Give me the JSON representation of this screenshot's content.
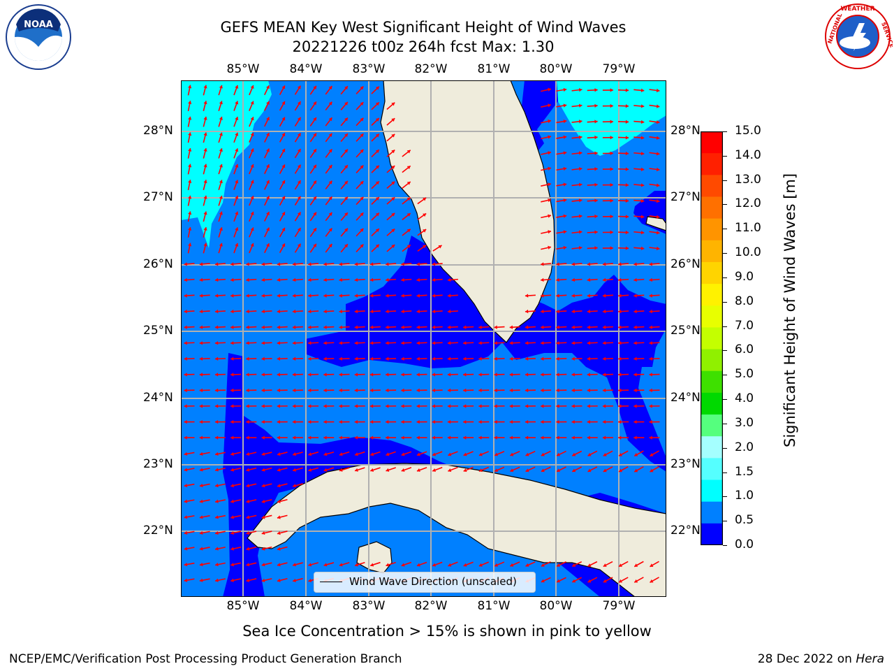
{
  "title": {
    "line1": "GEFS MEAN Key West Significant Height of Wind Waves",
    "line2": "20221226 t00z 264h fcst   Max: 1.30"
  },
  "axes": {
    "lon_labels": [
      "85°W",
      "84°W",
      "83°W",
      "82°W",
      "81°W",
      "80°W",
      "79°W"
    ],
    "lat_labels": [
      "28°N",
      "27°N",
      "26°N",
      "25°N",
      "24°N",
      "23°N",
      "22°N"
    ]
  },
  "colorbar": {
    "label": "Significant Height of Wind Waves [m]",
    "ticks": [
      "15.0",
      "14.0",
      "13.0",
      "12.0",
      "11.0",
      "10.0",
      "9.0",
      "8.0",
      "7.0",
      "6.0",
      "5.0",
      "4.0",
      "3.0",
      "2.0",
      "1.5",
      "1.0",
      "0.5",
      "0.0"
    ],
    "colors": [
      "#ff0000",
      "#ff2000",
      "#ff4a00",
      "#ff7000",
      "#ff9400",
      "#ffb400",
      "#ffd400",
      "#fff200",
      "#e8ff00",
      "#c4ff00",
      "#90f000",
      "#3ee000",
      "#00d900",
      "#55ff7e",
      "#a5ffff",
      "#55ffff",
      "#00ffff",
      "#0080ff",
      "#0000ff"
    ]
  },
  "legend": {
    "label": "Wind Wave Direction (unscaled)"
  },
  "note": "Sea Ice Concentration > 15% is shown in pink to yellow",
  "footer": {
    "left": "NCEP/EMC/Verification Post Processing Product Generation Branch",
    "right_date": "28 Dec 2022 on ",
    "right_host": "Hera"
  },
  "logos": {
    "noaa": "NOAA",
    "nws": "NATIONAL WEATHER SERVICE"
  },
  "palette": {
    "wave_0_0_5": "#0000ff",
    "wave_0_5_1_0": "#0080ff",
    "wave_1_0_1_5": "#00ffff",
    "land": "#efecdc",
    "arrows": "#ff0000"
  },
  "map_data": {
    "type": "contour-map",
    "variable": "Significant Height of Wind Waves",
    "units": "m",
    "max": 1.3,
    "lon_range": [
      -86.0,
      -78.3
    ],
    "lat_range": [
      21.0,
      28.8
    ],
    "levels": [
      0.0,
      0.5,
      1.0,
      1.5,
      2.0,
      3.0,
      4.0,
      5.0,
      6.0,
      7.0,
      8.0,
      9.0,
      10.0,
      11.0,
      12.0,
      13.0,
      14.0,
      15.0
    ]
  }
}
